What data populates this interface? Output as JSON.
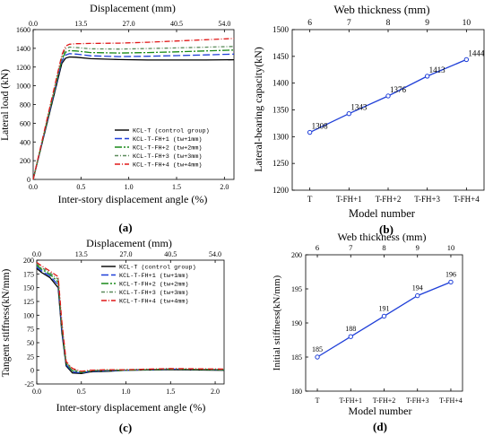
{
  "panels": {
    "a": {
      "label": "(a)",
      "chart_data": {
        "type": "line",
        "xlabel": "Inter-story displacement angle (%)",
        "x2label": "Displacement (mm)",
        "ylabel": "Lateral load (kN)",
        "xlim": [
          0,
          2.1
        ],
        "ylim": [
          0,
          1600
        ],
        "xticks": [
          "0.0",
          "0.5",
          "1.0",
          "1.5",
          "2.0"
        ],
        "x2ticks": [
          "0.0",
          "13.5",
          "27.0",
          "40.5",
          "54.0"
        ],
        "yticks": [
          "0",
          "200",
          "400",
          "600",
          "800",
          "1000",
          "1200",
          "1400",
          "1600"
        ],
        "legend_position": "lower-right",
        "series": [
          {
            "name": "KCL-T (control group)",
            "color": "#000000",
            "dash": "solid",
            "x": [
              0,
              0.3,
              0.34,
              0.38,
              0.45,
              0.6,
              0.9,
              1.2,
              1.5,
              1.8,
              2.1
            ],
            "y": [
              0,
              1240,
              1295,
              1308,
              1305,
              1290,
              1280,
              1275,
              1275,
              1275,
              1278
            ]
          },
          {
            "name": "KCL-T-FH+1 (tw+1mm)",
            "color": "#1f3fd8",
            "dash": "8,3",
            "x": [
              0,
              0.3,
              0.34,
              0.38,
              0.45,
              0.6,
              0.9,
              1.2,
              1.5,
              1.8,
              2.1
            ],
            "y": [
              0,
              1265,
              1328,
              1343,
              1338,
              1320,
              1312,
              1315,
              1322,
              1330,
              1338
            ]
          },
          {
            "name": "KCL-T-FH+2 (tw+2mm)",
            "color": "#1a8a1a",
            "dash": "8,2,2,2",
            "x": [
              0,
              0.3,
              0.34,
              0.38,
              0.45,
              0.6,
              0.9,
              1.2,
              1.5,
              1.8,
              2.1
            ],
            "y": [
              0,
              1285,
              1360,
              1376,
              1372,
              1355,
              1350,
              1355,
              1362,
              1372,
              1382
            ]
          },
          {
            "name": "KCL-T-FH+3 (tw+3mm)",
            "color": "#5a8a5a",
            "dash": "4,2,1,2",
            "x": [
              0,
              0.3,
              0.34,
              0.38,
              0.45,
              0.6,
              0.9,
              1.2,
              1.5,
              1.8,
              2.1
            ],
            "y": [
              0,
              1305,
              1395,
              1413,
              1408,
              1395,
              1392,
              1398,
              1405,
              1412,
              1420
            ]
          },
          {
            "name": "KCL-T-FH+4 (tw+4mm)",
            "color": "#e01818",
            "dash": "6,2,1,2",
            "x": [
              0,
              0.3,
              0.34,
              0.38,
              0.45,
              0.6,
              0.9,
              1.2,
              1.5,
              1.8,
              2.1
            ],
            "y": [
              0,
              1330,
              1425,
              1444,
              1450,
              1452,
              1455,
              1465,
              1478,
              1492,
              1505
            ]
          }
        ]
      }
    },
    "b": {
      "label": "(b)",
      "chart_data": {
        "type": "line",
        "xlabel": "Model number",
        "x2label": "Web thickness (mm)",
        "ylabel": "Lateral-bearing capacity(kN)",
        "categories": [
          "T",
          "T-FH+1",
          "T-FH+2",
          "T-FH+3",
          "T-FH+4"
        ],
        "x2ticks": [
          "6",
          "7",
          "8",
          "9",
          "10"
        ],
        "ylim": [
          1200,
          1500
        ],
        "yticks": [
          "1200",
          "1250",
          "1300",
          "1350",
          "1400",
          "1450",
          "1500"
        ],
        "series": [
          {
            "color": "#1f3fd8",
            "values": [
              1308,
              1343,
              1376,
              1413,
              1444
            ],
            "labels": [
              "1308",
              "1343",
              "1376",
              "1413",
              "1444"
            ]
          }
        ]
      }
    },
    "c": {
      "label": "(c)",
      "chart_data": {
        "type": "line",
        "xlabel": "Inter-story displacement angle (%)",
        "x2label": "Displacement (mm)",
        "ylabel": "Tangent stiffness(kN/mm)",
        "xlim": [
          0,
          2.1
        ],
        "ylim": [
          -25,
          200
        ],
        "xticks": [
          "0.0",
          "0.5",
          "1.0",
          "1.5",
          "2.0"
        ],
        "x2ticks": [
          "0.0",
          "13.5",
          "27.0",
          "40.5",
          "54.0"
        ],
        "yticks": [
          "-25",
          "0",
          "25",
          "50",
          "75",
          "100",
          "125",
          "150",
          "175",
          "200"
        ],
        "legend_position": "upper-right",
        "series": [
          {
            "name": "KCL-T (control group)",
            "color": "#000000",
            "dash": "solid",
            "x": [
              0,
              0.05,
              0.15,
              0.24,
              0.28,
              0.33,
              0.4,
              0.5,
              0.6,
              0.8,
              1.0,
              1.5,
              2.1
            ],
            "y": [
              185,
              178,
              168,
              150,
              70,
              8,
              -5,
              -6,
              -3,
              -2,
              0,
              1,
              0
            ]
          },
          {
            "name": "KCL-T-FH+1 (tw+1mm)",
            "color": "#1f3fd8",
            "dash": "8,3",
            "x": [
              0,
              0.05,
              0.15,
              0.24,
              0.28,
              0.33,
              0.4,
              0.5,
              0.6,
              0.8,
              1.0,
              1.5,
              2.1
            ],
            "y": [
              188,
              181,
              171,
              155,
              75,
              10,
              -3,
              -5,
              -2,
              -1,
              0,
              2,
              1
            ]
          },
          {
            "name": "KCL-T-FH+2 (tw+2mm)",
            "color": "#1a8a1a",
            "dash": "8,2,2,2",
            "x": [
              0,
              0.05,
              0.15,
              0.24,
              0.28,
              0.33,
              0.4,
              0.5,
              0.6,
              0.8,
              1.0,
              1.5,
              2.1
            ],
            "y": [
              191,
              184,
              174,
              160,
              80,
              12,
              -1,
              -4,
              -1,
              0,
              0,
              2,
              1
            ]
          },
          {
            "name": "KCL-T-FH+3 (tw+3mm)",
            "color": "#5a8a5a",
            "dash": "4,2,1,2",
            "x": [
              0,
              0.05,
              0.15,
              0.24,
              0.28,
              0.33,
              0.4,
              0.5,
              0.6,
              0.8,
              1.0,
              1.5,
              2.1
            ],
            "y": [
              194,
              187,
              177,
              165,
              85,
              14,
              1,
              -3,
              0,
              0,
              1,
              2,
              1
            ]
          },
          {
            "name": "KCL-T-FH+4 (tw+4mm)",
            "color": "#e01818",
            "dash": "6,2,1,2",
            "x": [
              0,
              0.05,
              0.15,
              0.24,
              0.28,
              0.33,
              0.4,
              0.5,
              0.6,
              0.8,
              1.0,
              1.5,
              2.1
            ],
            "y": [
              196,
              190,
              180,
              170,
              90,
              16,
              3,
              -2,
              0,
              1,
              1,
              3,
              2
            ]
          }
        ]
      }
    },
    "d": {
      "label": "(d)",
      "chart_data": {
        "type": "line",
        "xlabel": "Model number",
        "x2label": "Web thickness (mm)",
        "ylabel": "Initial stiffness(kN/mm)",
        "categories": [
          "T",
          "T-FH+1",
          "T-FH+2",
          "T-FH+3",
          "T-FH+4"
        ],
        "x2ticks": [
          "6",
          "7",
          "8",
          "9",
          "10"
        ],
        "ylim": [
          180,
          200
        ],
        "yticks": [
          "180",
          "185",
          "190",
          "195",
          "200"
        ],
        "series": [
          {
            "color": "#1f3fd8",
            "values": [
              185,
              188,
              191,
              194,
              196
            ],
            "labels": [
              "185",
              "188",
              "191",
              "194",
              "196"
            ]
          }
        ]
      }
    }
  }
}
